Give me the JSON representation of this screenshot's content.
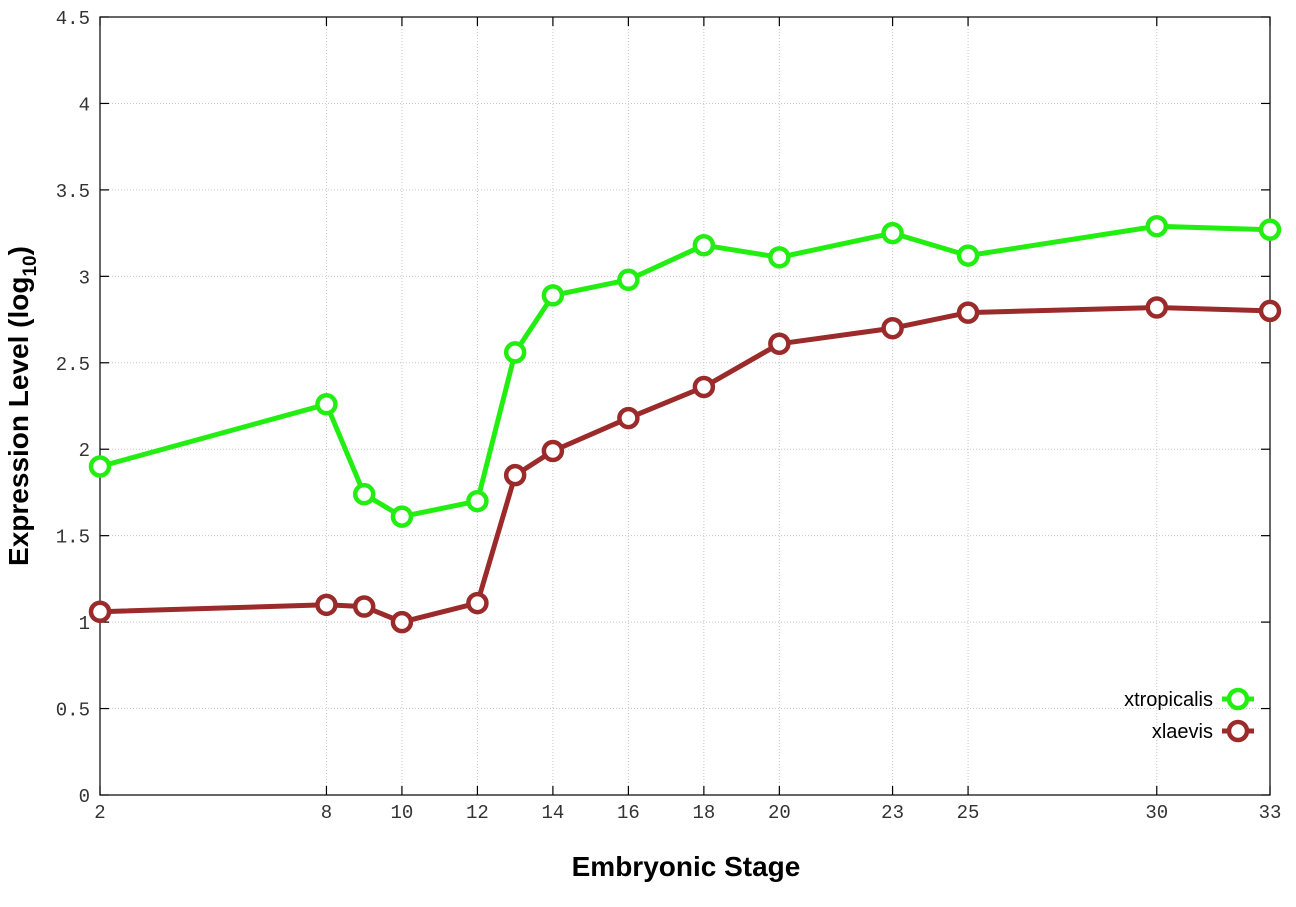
{
  "chart_data": {
    "type": "line",
    "xlabel": "Embryonic Stage",
    "ylabel": "Expression Level (log",
    "ylabel_subscript": "10",
    "ylabel_suffix": ")",
    "ylim": [
      0,
      4.5
    ],
    "xlim": [
      2,
      33
    ],
    "grid": true,
    "legend": "bottom-right",
    "x_ticks": [
      2,
      8,
      10,
      12,
      14,
      16,
      18,
      20,
      23,
      25,
      30,
      33
    ],
    "x_tick_labels": [
      "2",
      "8",
      "10",
      "12",
      "14",
      "16",
      "18",
      "20",
      "23",
      "25",
      "30",
      "33"
    ],
    "y_ticks": [
      0,
      0.5,
      1,
      1.5,
      2,
      2.5,
      3,
      3.5,
      4,
      4.5
    ],
    "y_tick_labels": [
      "0",
      "0.5",
      "1",
      "1.5",
      "2",
      "2.5",
      "3",
      "3.5",
      "4",
      "4.5"
    ],
    "x": [
      2,
      8,
      9,
      10,
      12,
      13,
      14,
      16,
      18,
      20,
      23,
      25,
      30,
      33
    ],
    "series": [
      {
        "name": "xtropicalis",
        "color": "#22ee11",
        "values": [
          1.9,
          2.26,
          1.74,
          1.61,
          1.7,
          2.56,
          2.89,
          2.98,
          3.18,
          3.11,
          3.25,
          3.12,
          3.29,
          3.27
        ]
      },
      {
        "name": "xlaevis",
        "color": "#9b2a2a",
        "values": [
          1.06,
          1.1,
          1.09,
          1.0,
          1.11,
          1.85,
          1.99,
          2.18,
          2.36,
          2.61,
          2.7,
          2.79,
          2.82,
          2.8
        ]
      }
    ]
  }
}
